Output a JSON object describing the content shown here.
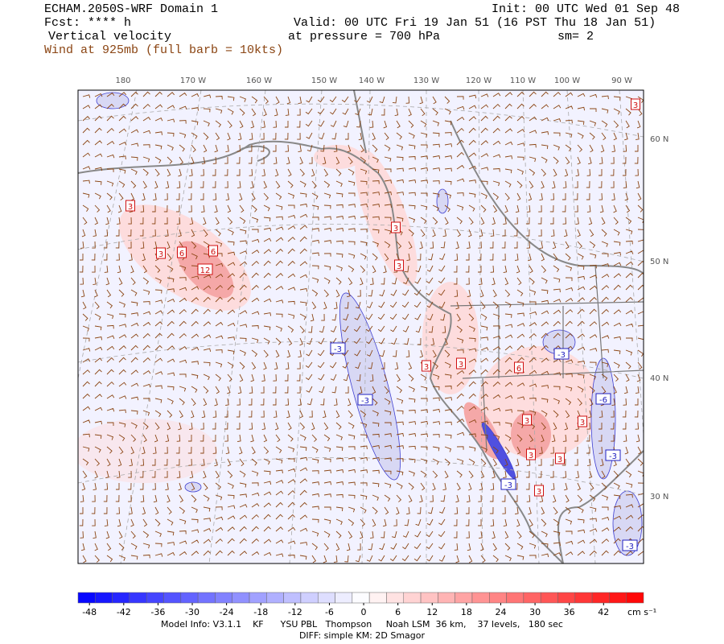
{
  "header": {
    "title": "ECHAM.2050S-WRF Domain 1",
    "init": "Init: 00 UTC Wed 01 Sep 48",
    "forecast": "Fcst: **** h",
    "valid": "Valid: 00 UTC Fri 19 Jan 51 (16 PST Thu 18 Jan 51)",
    "field": "Vertical velocity",
    "pressure": "at pressure =  700 hPa",
    "smoothing": "sm= 2",
    "wind": "Wind at 925mb (full barb = 10kts)"
  },
  "map": {
    "longitude_labels": [
      "180",
      "170 W",
      "160 W",
      "150 W",
      "140 W",
      "130 W",
      "120 W",
      "110 W",
      "100 W",
      "90 W"
    ],
    "latitude_labels": [
      "60 N",
      "50 N",
      "40 N",
      "30 N"
    ],
    "contour_labels": [
      "3",
      "3",
      "6",
      "6",
      "12",
      "3",
      "3",
      "3",
      "-3",
      "-3",
      "3",
      "3",
      "6",
      "-3",
      "-6",
      "3",
      "3",
      "-3",
      "3",
      "3",
      "-3",
      "3",
      "-3"
    ]
  },
  "colorbar": {
    "ticks": [
      -48,
      -42,
      -36,
      -30,
      -24,
      -18,
      -12,
      -6,
      0,
      6,
      12,
      18,
      24,
      30,
      36,
      42
    ],
    "range": [
      -50,
      49
    ],
    "step": 3,
    "unit": "cm s⁻¹",
    "color_min": "#0000ff",
    "color_mid": "#ffffff",
    "color_max": "#ff0000"
  },
  "footer": {
    "model_info": "Model Info: V3.1.1    KF      YSU PBL   Thompson     Noah LSM  36 km,    37 levels,   180 sec",
    "diff": "DIFF: simple KM: 2D Smagor"
  }
}
